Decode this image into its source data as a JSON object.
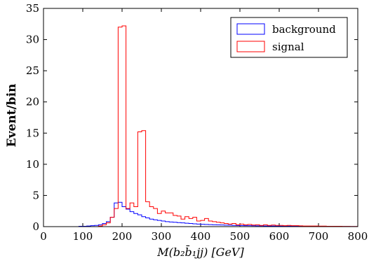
{
  "chart_data": {
    "type": "line",
    "step": true,
    "xlabel": "M(b₂b̄₁jj) [GeV]",
    "ylabel": "Event/bin",
    "xlim": [
      0,
      800
    ],
    "ylim": [
      0,
      35
    ],
    "xticks": [
      "0",
      "100",
      "200",
      "300",
      "400",
      "500",
      "600",
      "700",
      "800"
    ],
    "yticks": [
      "0",
      "5",
      "10",
      "15",
      "20",
      "25",
      "30",
      "35"
    ],
    "grid": false,
    "legend_position": "top-right",
    "bin_edges": [
      0,
      10,
      20,
      30,
      40,
      50,
      60,
      70,
      80,
      90,
      100,
      110,
      120,
      130,
      140,
      150,
      160,
      170,
      180,
      190,
      200,
      210,
      220,
      230,
      240,
      250,
      260,
      270,
      280,
      290,
      300,
      310,
      320,
      330,
      340,
      350,
      360,
      370,
      380,
      390,
      400,
      410,
      420,
      430,
      440,
      450,
      460,
      470,
      480,
      490,
      500,
      510,
      520,
      530,
      540,
      550,
      560,
      570,
      580,
      590,
      600,
      610,
      620,
      630,
      640,
      650,
      660,
      670,
      680,
      690,
      700,
      710,
      720,
      730,
      740,
      750,
      760,
      770,
      780,
      790,
      800
    ],
    "series": [
      {
        "name": "background",
        "color": "#0000ff",
        "values": [
          0,
          0,
          0,
          0,
          0,
          0,
          0,
          0,
          0,
          0.05,
          0.05,
          0.1,
          0.15,
          0.2,
          0.3,
          0.5,
          0.8,
          1.5,
          3.8,
          3.9,
          3.2,
          2.8,
          2.4,
          2.1,
          1.9,
          1.6,
          1.4,
          1.2,
          1.1,
          1.0,
          0.9,
          0.8,
          0.75,
          0.7,
          0.65,
          0.6,
          0.55,
          0.5,
          0.45,
          0.4,
          0.38,
          0.35,
          0.32,
          0.3,
          0.28,
          0.26,
          0.24,
          0.22,
          0.2,
          0.18,
          0.17,
          0.16,
          0.15,
          0.14,
          0.13,
          0.12,
          0.11,
          0.1,
          0.1,
          0.09,
          0.09,
          0.08,
          0.08,
          0.07,
          0.07,
          0.06,
          0.06,
          0.05,
          0.05,
          0.05,
          0.04,
          0.04,
          0.04,
          0.03,
          0.03,
          0.03,
          0.02,
          0.02,
          0.02,
          0.02
        ]
      },
      {
        "name": "signal",
        "color": "#ff0000",
        "values": [
          0,
          0,
          0,
          0,
          0,
          0,
          0,
          0,
          0,
          0,
          0,
          0,
          0,
          0,
          0.1,
          0.3,
          0.6,
          1.5,
          2.9,
          32.0,
          32.2,
          2.9,
          3.8,
          3.2,
          15.2,
          15.4,
          4.0,
          3.2,
          2.9,
          2.1,
          2.5,
          2.2,
          2.2,
          1.8,
          1.7,
          1.2,
          1.6,
          1.3,
          1.5,
          0.9,
          1.0,
          1.3,
          0.9,
          0.8,
          0.7,
          0.6,
          0.5,
          0.4,
          0.5,
          0.3,
          0.4,
          0.3,
          0.35,
          0.25,
          0.3,
          0.2,
          0.3,
          0.2,
          0.25,
          0.2,
          0.2,
          0.15,
          0.2,
          0.15,
          0.15,
          0.12,
          0.1,
          0.1,
          0.1,
          0.1,
          0.08,
          0.08,
          0.06,
          0.06,
          0.05,
          0.05,
          0.04,
          0.04,
          0.03,
          0.03
        ]
      }
    ]
  }
}
